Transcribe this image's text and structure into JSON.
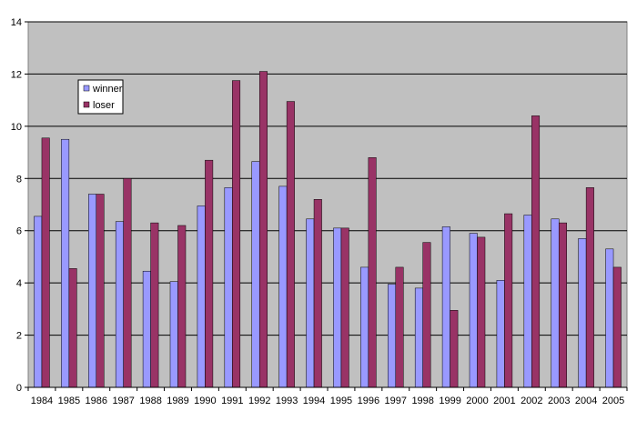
{
  "chart_data": {
    "type": "bar",
    "title": "",
    "xlabel": "",
    "ylabel": "",
    "ylim": [
      0,
      14
    ],
    "yticks": [
      0,
      2,
      4,
      6,
      8,
      10,
      12,
      14
    ],
    "grid": true,
    "legend_position": "top-left",
    "categories": [
      "1984",
      "1985",
      "1986",
      "1987",
      "1988",
      "1989",
      "1990",
      "1991",
      "1992",
      "1993",
      "1994",
      "1995",
      "1996",
      "1997",
      "1998",
      "1999",
      "2000",
      "2001",
      "2002",
      "2003",
      "2004",
      "2005"
    ],
    "series": [
      {
        "name": "winner",
        "color": "#9999ff",
        "values": [
          6.55,
          9.5,
          7.4,
          6.35,
          4.45,
          4.05,
          6.95,
          7.65,
          8.65,
          7.7,
          6.45,
          6.1,
          4.6,
          3.95,
          3.8,
          6.15,
          5.9,
          4.1,
          6.6,
          6.45,
          5.7,
          5.3
        ]
      },
      {
        "name": "loser",
        "color": "#993366",
        "values": [
          9.55,
          4.55,
          7.4,
          8.0,
          6.3,
          6.2,
          8.7,
          11.75,
          12.1,
          10.95,
          7.2,
          6.1,
          8.8,
          4.6,
          5.55,
          2.95,
          5.75,
          6.65,
          10.4,
          6.3,
          7.65,
          4.6
        ]
      }
    ],
    "plot_background": "#c0c0c0"
  }
}
